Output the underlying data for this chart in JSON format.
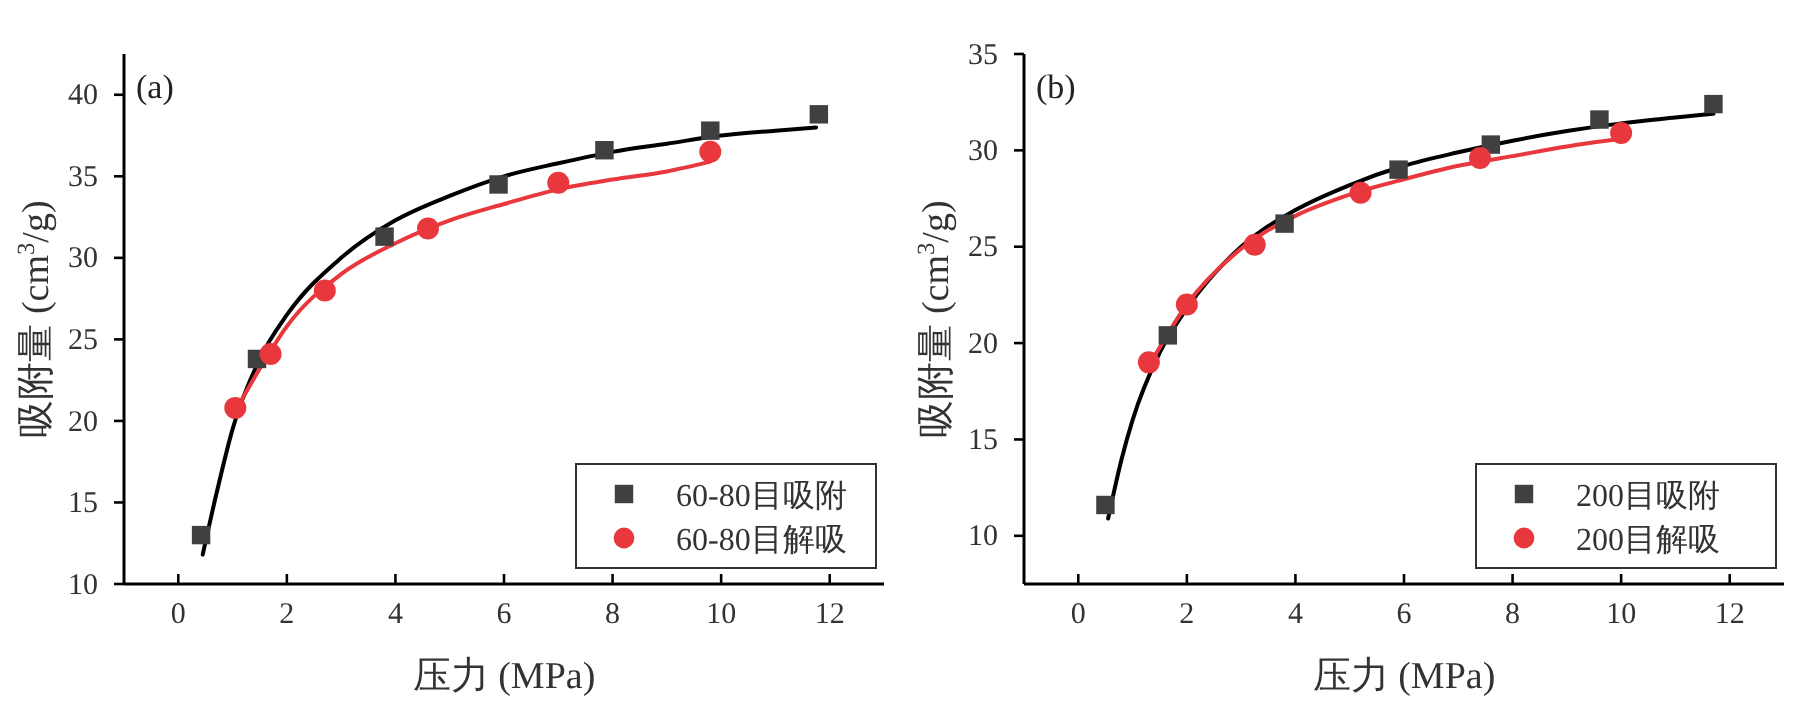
{
  "chart_data": [
    {
      "type": "scatter",
      "xlabel": "压力 (MPa)",
      "ylabel": "吸附量 (cm$^{3}$/g)",
      "annotations": [
        "(a)"
      ],
      "xlim": [
        -1,
        13
      ],
      "ylim": [
        10,
        42.5
      ],
      "xticks": [
        0,
        2,
        4,
        6,
        8,
        10,
        12
      ],
      "yticks": [
        10,
        15,
        20,
        25,
        30,
        35,
        40
      ],
      "legend": "bottom right",
      "grid": false,
      "series": [
        {
          "name": "60-80目吸附",
          "marker": "square",
          "color": "#404040",
          "x": [
            0.42,
            1.45,
            3.8,
            5.9,
            7.85,
            9.8,
            11.8
          ],
          "values": [
            13.0,
            23.8,
            31.3,
            34.5,
            36.6,
            37.8,
            38.8
          ]
        },
        {
          "name": "60-80目解吸",
          "marker": "circle",
          "color": "#e8383d",
          "x": [
            1.05,
            1.7,
            2.7,
            4.6,
            7.0,
            9.8
          ],
          "values": [
            20.8,
            24.1,
            28.0,
            31.8,
            34.6,
            36.5
          ]
        },
        {
          "type": "line",
          "color": "#000000",
          "line_style": "solid",
          "x": [
            0.45,
            0.7,
            1,
            1.5,
            2,
            3,
            4,
            5,
            6,
            7,
            8,
            9,
            10,
            11,
            11.75
          ],
          "values": [
            11.8,
            15.5,
            19.5,
            23.8,
            26.5,
            30,
            32.3,
            33.8,
            35,
            35.8,
            36.5,
            37,
            37.5,
            37.8,
            38.0
          ]
        },
        {
          "type": "line",
          "color": "#e8383d",
          "line_style": "solid",
          "x": [
            1.0,
            1.5,
            2,
            3,
            4,
            5,
            6,
            7,
            8,
            9,
            9.8
          ],
          "values": [
            20.3,
            23.2,
            25.8,
            29,
            30.9,
            32.3,
            33.3,
            34.2,
            34.8,
            35.3,
            35.9
          ]
        }
      ]
    },
    {
      "type": "scatter",
      "xlabel": "压力 (MPa)",
      "ylabel": "吸附量 (cm$^{3}$/g)",
      "annotations": [
        "(b)"
      ],
      "xlim": [
        -1,
        13
      ],
      "ylim": [
        7.5,
        35
      ],
      "xticks": [
        0,
        2,
        4,
        6,
        8,
        10,
        12
      ],
      "yticks": [
        10,
        15,
        20,
        25,
        30,
        35
      ],
      "legend": "bottom right",
      "grid": false,
      "series": [
        {
          "name": "200目吸附",
          "marker": "square",
          "color": "#404040",
          "x": [
            0.5,
            1.65,
            3.8,
            5.9,
            7.6,
            9.6,
            11.7
          ],
          "values": [
            11.6,
            20.4,
            26.2,
            29.0,
            30.3,
            31.6,
            32.4
          ]
        },
        {
          "name": "200目解吸",
          "marker": "circle",
          "color": "#e8383d",
          "x": [
            1.3,
            2.0,
            3.25,
            5.2,
            7.4,
            10.0
          ],
          "values": [
            19.0,
            22.0,
            25.1,
            27.8,
            29.6,
            30.9
          ]
        },
        {
          "type": "line",
          "color": "#000000",
          "line_style": "solid",
          "x": [
            0.55,
            0.8,
            1,
            1.5,
            2,
            3,
            4,
            5,
            6,
            7,
            8,
            9,
            10,
            11,
            11.7
          ],
          "values": [
            10.9,
            14,
            16,
            19.5,
            21.8,
            25,
            26.9,
            28.2,
            29.2,
            29.9,
            30.5,
            31,
            31.4,
            31.7,
            31.9
          ]
        },
        {
          "type": "line",
          "color": "#e8383d",
          "line_style": "solid",
          "x": [
            1.3,
            2,
            3,
            4,
            5,
            6,
            7,
            8,
            9,
            10
          ],
          "values": [
            18.8,
            22,
            24.9,
            26.6,
            27.7,
            28.5,
            29.2,
            29.7,
            30.2,
            30.6
          ]
        }
      ]
    }
  ]
}
